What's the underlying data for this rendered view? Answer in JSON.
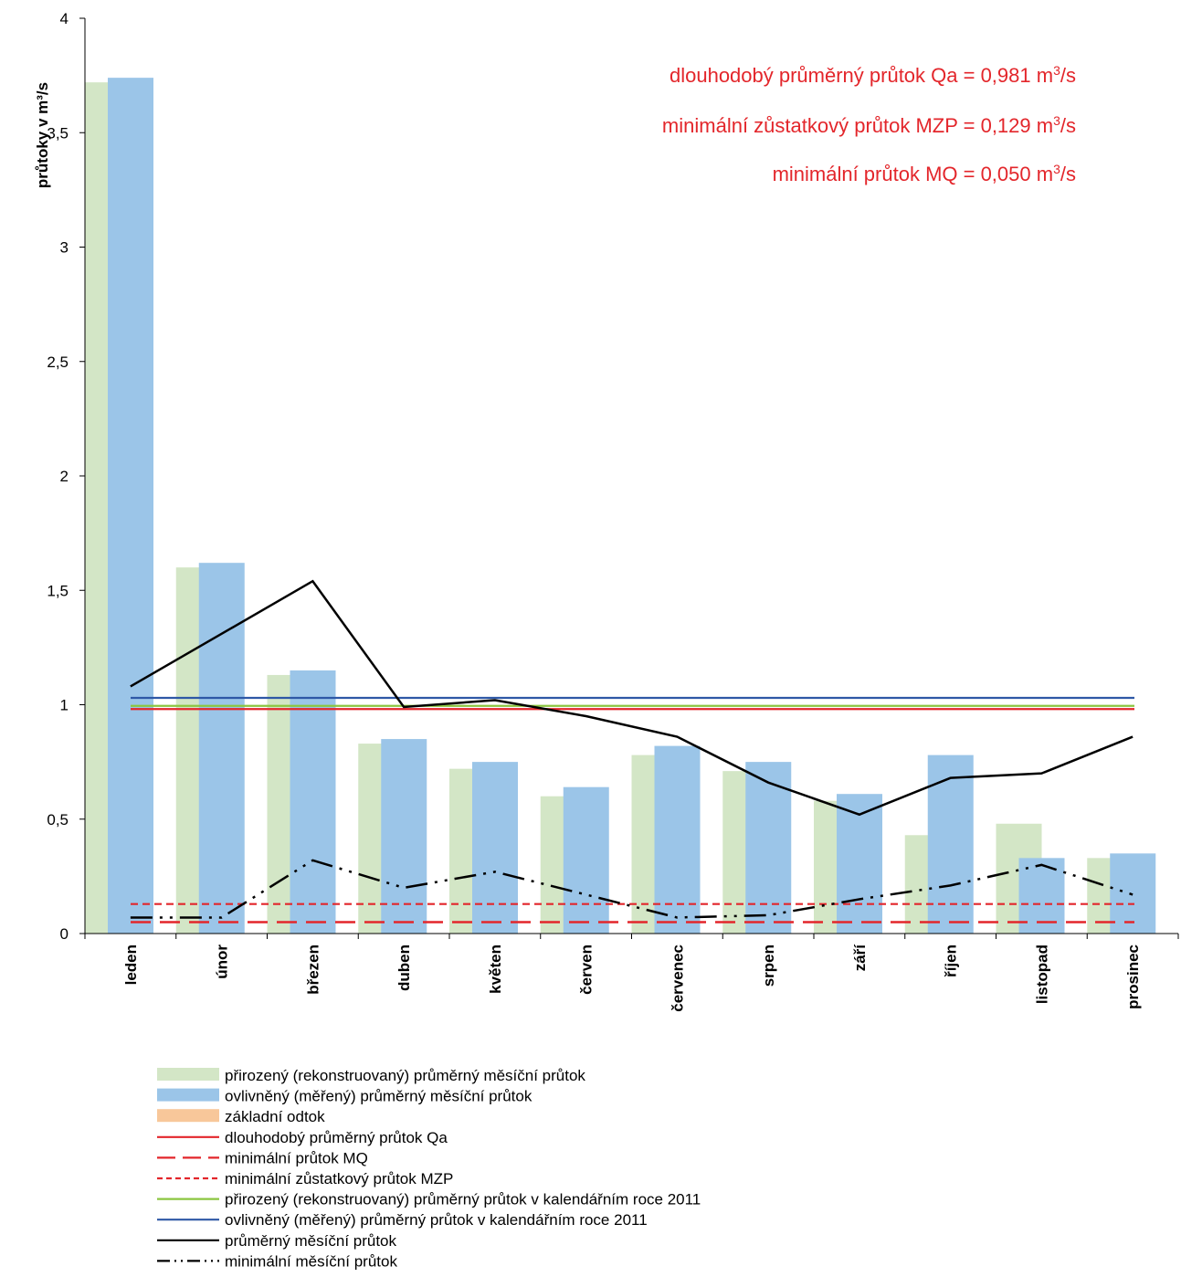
{
  "chart_data": {
    "type": "bar",
    "ylabel": "průtoky v m³/s",
    "ylim": [
      0,
      4
    ],
    "yticks": [
      "0",
      "0,5",
      "1",
      "1,5",
      "2",
      "2,5",
      "3",
      "3,5",
      "4"
    ],
    "categories": [
      "leden",
      "únor",
      "březen",
      "duben",
      "květen",
      "červen",
      "červenec",
      "srpen",
      "září",
      "říjen",
      "listopad",
      "prosinec"
    ],
    "bar_series": [
      {
        "name": "přirozený (rekonstruovaný) průměrný měsíční průtok",
        "color": "#d3e6c6",
        "values": [
          3.72,
          1.6,
          1.13,
          0.83,
          0.72,
          0.6,
          0.78,
          0.71,
          0.58,
          0.43,
          0.48,
          0.33
        ]
      },
      {
        "name": "ovlivněný (měřený) průměrný měsíční průtok",
        "color": "#9bc5e8",
        "values": [
          3.74,
          1.62,
          1.15,
          0.85,
          0.75,
          0.64,
          0.82,
          0.75,
          0.61,
          0.78,
          0.33,
          0.35
        ]
      }
    ],
    "baseflow": {
      "name": "základní odtok",
      "color": "#f8c79a"
    },
    "hlines": [
      {
        "name": "dlouhodobý průměrný průtok Qa",
        "value": 0.981,
        "color": "#e3262b",
        "dash": "solid"
      },
      {
        "name": "minimální průtok MQ",
        "value": 0.05,
        "color": "#e3262b",
        "dash": "long"
      },
      {
        "name": "minimální zůstatkový průtok MZP",
        "value": 0.129,
        "color": "#e3262b",
        "dash": "short"
      },
      {
        "name": "přirozený (rekonstruovaný) průměrný průtok v kalendářním roce 2011",
        "value": 0.995,
        "color": "#8bc540",
        "dash": "solid"
      },
      {
        "name": "ovlivněný (měřený) průměrný průtok v kalendářním roce 2011",
        "value": 1.03,
        "color": "#2e58a6",
        "dash": "solid"
      }
    ],
    "line_series": [
      {
        "name": "průměrný měsíční průtok",
        "color": "#000000",
        "dash": "solid",
        "values": [
          1.08,
          1.31,
          1.54,
          0.99,
          1.02,
          0.95,
          0.86,
          0.66,
          0.52,
          0.68,
          0.7,
          0.86
        ]
      },
      {
        "name": "minimální měsíční průtok",
        "color": "#000000",
        "dash": "dashdotdot",
        "values": [
          0.07,
          0.07,
          0.32,
          0.2,
          0.27,
          0.17,
          0.07,
          0.08,
          0.15,
          0.21,
          0.3,
          0.17
        ]
      }
    ],
    "annotations": [
      {
        "text": "dlouhodobý průměrný  průtok Qa = 0,981  m³/s"
      },
      {
        "text": "minimální zůstatkový průtok MZP = 0,129  m³/s"
      },
      {
        "text": "minimální průtok MQ = 0,050  m³/s"
      }
    ],
    "legend_position": "bottom"
  }
}
